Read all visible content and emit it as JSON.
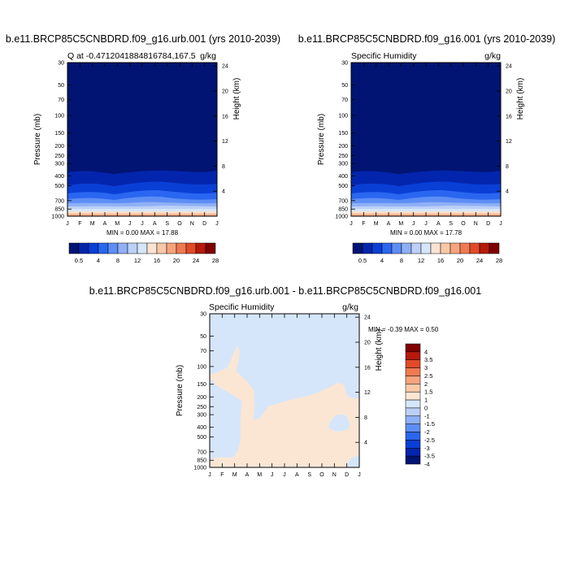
{
  "colors": {
    "scale": [
      "#011473",
      "#0325ad",
      "#0a3fd6",
      "#2a66f0",
      "#5d8ef5",
      "#8fb0f5",
      "#bcd0f7",
      "#d6e6fa",
      "#fbe3d2",
      "#f8c8a8",
      "#f5a47d",
      "#ef7a52",
      "#e14a28",
      "#b51a0c",
      "#800000"
    ],
    "diff_scale": [
      "#011473",
      "#0325ad",
      "#0a3fd6",
      "#2a66f0",
      "#5d8ef5",
      "#8fb0f5",
      "#bcd0f7",
      "#d6e6fa",
      "#fbe6d4",
      "#f8caa8",
      "#f5a47d",
      "#ef7a52",
      "#e14a28",
      "#b51a0c",
      "#800000"
    ]
  },
  "panels": {
    "p1": {
      "title": "b.e11.BRCP85C5CNBDRD.f09_g16.urb.001 (yrs 2010-2039)",
      "left_label": "Q at -0.4712041884816784,167.5",
      "right_label": "g/kg",
      "minmax": "MIN =   0.00 MAX =  17.88"
    },
    "p2": {
      "title": "b.e11.BRCP85C5CNBDRD.f09_g16.001 (yrs 2010-2039)",
      "left_label": "Specific Humidity",
      "right_label": "g/kg",
      "minmax": "MIN =   0.00 MAX =  17.78"
    },
    "p3": {
      "title": "b.e11.BRCP85C5CNBDRD.f09_g16.urb.001 - b.e11.BRCP85C5CNBDRD.f09_g16.001",
      "left_label": "Specific Humidity",
      "right_label": "g/kg",
      "minmax": "MIN =  -0.39 MAX =   0.50"
    }
  },
  "chart_data": [
    {
      "type": "heatmap",
      "title": "b.e11.BRCP85C5CNBDRD.f09_g16.urb.001 (yrs 2010-2039)",
      "ylabel": "Pressure (mb)",
      "y2label": "Height (km)",
      "x_ticks": [
        "J",
        "F",
        "M",
        "A",
        "M",
        "J",
        "J",
        "A",
        "S",
        "O",
        "N",
        "D",
        "J"
      ],
      "y_ticks": [
        "30",
        "50",
        "70",
        "100",
        "150",
        "200",
        "250",
        "300",
        "400",
        "500",
        "700",
        "850",
        "1000"
      ],
      "y2_ticks": [
        "24",
        "20",
        "16",
        "12",
        "8",
        "4"
      ],
      "min": 0.0,
      "max": 17.88,
      "colorbar_labels": [
        "0.5",
        "4",
        "8",
        "12",
        "16",
        "20",
        "24",
        "28"
      ]
    },
    {
      "type": "heatmap",
      "title": "b.e11.BRCP85C5CNBDRD.f09_g16.001 (yrs 2010-2039)",
      "ylabel": "Pressure (mb)",
      "y2label": "Height (km)",
      "x_ticks": [
        "J",
        "F",
        "M",
        "A",
        "M",
        "J",
        "J",
        "A",
        "S",
        "O",
        "N",
        "D",
        "J"
      ],
      "y_ticks": [
        "30",
        "50",
        "70",
        "100",
        "150",
        "200",
        "250",
        "300",
        "400",
        "500",
        "700",
        "850",
        "1000"
      ],
      "y2_ticks": [
        "24",
        "20",
        "16",
        "12",
        "8",
        "4"
      ],
      "min": 0.0,
      "max": 17.78,
      "colorbar_labels": [
        "0.5",
        "4",
        "8",
        "12",
        "16",
        "20",
        "24",
        "28"
      ]
    },
    {
      "type": "heatmap",
      "title": "b.e11.BRCP85C5CNBDRD.f09_g16.urb.001 - b.e11.BRCP85C5CNBDRD.f09_g16.001",
      "ylabel": "Pressure (mb)",
      "y2label": "Height (km)",
      "x_ticks": [
        "J",
        "F",
        "M",
        "A",
        "M",
        "J",
        "J",
        "A",
        "S",
        "O",
        "N",
        "D",
        "J"
      ],
      "y_ticks": [
        "30",
        "50",
        "70",
        "100",
        "150",
        "200",
        "250",
        "300",
        "400",
        "500",
        "700",
        "850",
        "1000"
      ],
      "y2_ticks": [
        "24",
        "20",
        "16",
        "12",
        "8",
        "4"
      ],
      "min": -0.39,
      "max": 0.5,
      "colorbar_labels": [
        "4",
        "3.5",
        "3",
        "2.5",
        "2",
        "1.5",
        "1",
        "0",
        "-1",
        "-1.5",
        "-2",
        "-2.5",
        "-3",
        "-3.5",
        "-4"
      ]
    }
  ]
}
